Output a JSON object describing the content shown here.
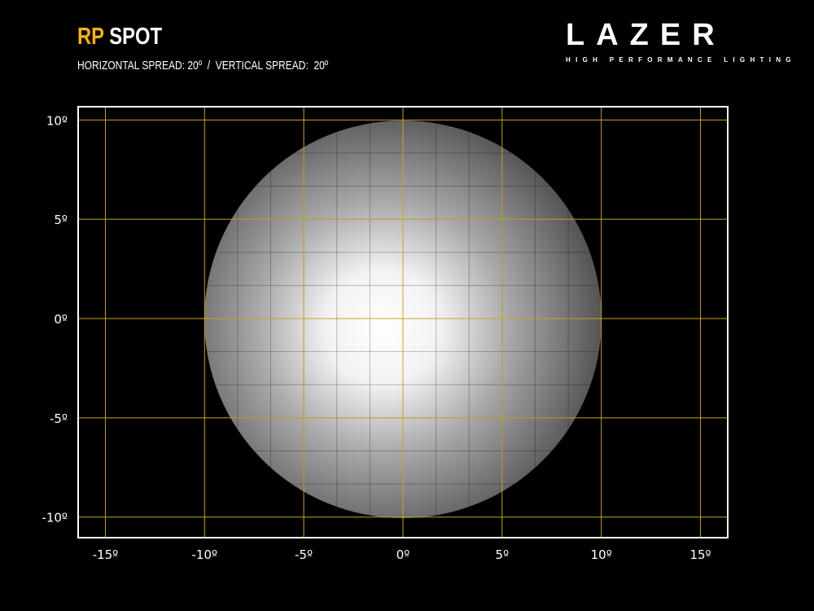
{
  "header": {
    "title_accent": "RP",
    "title_main": "SPOT",
    "subtitle": "HORIZONTAL SPREAD: 20º  /  VERTICAL SPREAD:  20º"
  },
  "logo": {
    "word": "LAZER",
    "tagline": "HIGH PERFORMANCE LIGHTING"
  },
  "colors": {
    "accent": "#f5b21b",
    "grid": "#c9a227",
    "frame": "#ffffff",
    "background": "#000000"
  },
  "chart_data": {
    "type": "heatmap",
    "description_kind": "beam pattern",
    "x_ticks": [
      -15,
      -10,
      -5,
      0,
      5,
      10,
      15
    ],
    "y_ticks": [
      10,
      5,
      0,
      -5,
      -10
    ],
    "x_tick_labels": [
      "-15º",
      "-10º",
      "-5º",
      "0º",
      "5º",
      "10º",
      "15º"
    ],
    "y_tick_labels": [
      "10º",
      "5º",
      "0º",
      "-5º",
      "-10º"
    ],
    "xlim": [
      -16.4,
      16.4
    ],
    "ylim": [
      -11.1,
      10.7
    ],
    "grid": true,
    "beam": {
      "horizontal_spread_deg": 20,
      "vertical_spread_deg": 20,
      "center": [
        0,
        0
      ],
      "hotspot": [
        -1,
        -0.5
      ]
    }
  }
}
